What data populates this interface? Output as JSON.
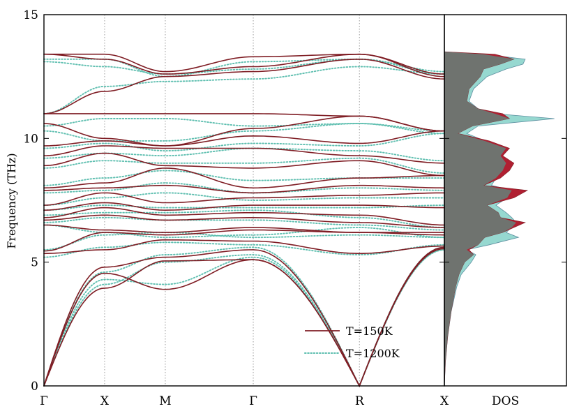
{
  "chart_data": [
    {
      "type": "line",
      "panel": "phonon-dispersion",
      "ylabel": "Frequency (THz)",
      "xlabel": "",
      "ylim": [
        0,
        15
      ],
      "yticks": [
        0,
        5,
        10,
        15
      ],
      "path_points": [
        "Γ",
        "X",
        "M",
        "Γ",
        "R",
        "X"
      ],
      "path_positions": [
        0,
        1,
        2,
        3.45,
        5.2,
        6.6
      ],
      "grid": "vertical dotted lines at high-symmetry points",
      "legend_position": "bottom-right",
      "series": [
        {
          "name": "T=150K",
          "color": "#7f1d24",
          "style": "solid",
          "bands": [
            [
              0,
              4.55,
              3.9,
              5.1,
              0,
              5.55,
              3.85
            ],
            [
              0,
              3.95,
              5.05,
              5.1,
              0,
              5.55,
              4.75
            ],
            [
              0,
              4.8,
              5.2,
              5.5,
              0,
              5.6,
              4.75
            ],
            [
              5.35,
              5.5,
              5.9,
              5.85,
              5.35,
              5.65,
              6.2
            ],
            [
              5.45,
              6.2,
              6.1,
              6.3,
              6.2,
              6.1,
              6.3
            ],
            [
              6.5,
              6.3,
              6.2,
              6.4,
              6.2,
              6.2,
              6.4
            ],
            [
              6.7,
              6.9,
              6.7,
              6.8,
              6.6,
              6.4,
              6.9
            ],
            [
              6.8,
              7.2,
              6.9,
              7.0,
              6.9,
              6.5,
              7.2
            ],
            [
              7.1,
              7.4,
              7.1,
              7.3,
              7.3,
              7.2,
              7.2
            ],
            [
              7.3,
              7.8,
              7.4,
              7.6,
              7.7,
              7.8,
              7.4
            ],
            [
              7.9,
              8.0,
              8.1,
              7.8,
              8.1,
              8.0,
              8.0
            ],
            [
              8.0,
              8.2,
              8.8,
              8.0,
              8.4,
              8.5,
              8.7
            ],
            [
              8.9,
              9.4,
              8.9,
              8.8,
              9.1,
              8.5,
              9.3
            ],
            [
              9.3,
              9.7,
              9.6,
              9.6,
              9.3,
              9.0,
              9.6
            ],
            [
              9.7,
              9.9,
              9.7,
              10.1,
              9.8,
              10.3,
              9.8
            ],
            [
              10.6,
              10.0,
              9.7,
              10.4,
              10.9,
              10.3,
              10.0
            ],
            [
              11.0,
              11.0,
              11.0,
              11.0,
              10.9,
              10.3,
              11.0
            ],
            [
              11.0,
              11.9,
              12.5,
              12.7,
              13.2,
              12.4,
              11.9
            ],
            [
              13.4,
              13.2,
              12.6,
              12.9,
              13.4,
              12.5,
              12.5
            ],
            [
              13.4,
              13.4,
              12.7,
              13.3,
              13.4,
              12.6,
              13.4
            ]
          ]
        },
        {
          "name": "T=1200K",
          "color": "#5fbfb0",
          "style": "dotted",
          "bands": [
            [
              0,
              4.3,
              4.1,
              5.2,
              0,
              5.5,
              4.1
            ],
            [
              0,
              4.1,
              5.0,
              5.3,
              0,
              5.5,
              4.3
            ],
            [
              0,
              4.6,
              5.3,
              5.6,
              0,
              5.6,
              4.6
            ],
            [
              5.2,
              5.6,
              5.8,
              5.7,
              5.3,
              5.7,
              6.0
            ],
            [
              5.5,
              6.1,
              6.2,
              6.0,
              6.1,
              6.0,
              6.2
            ],
            [
              6.5,
              6.2,
              6.0,
              6.1,
              6.4,
              6.0,
              6.3
            ],
            [
              6.6,
              6.8,
              6.7,
              6.7,
              6.5,
              6.3,
              6.8
            ],
            [
              6.9,
              7.0,
              7.0,
              7.1,
              6.8,
              6.4,
              7.1
            ],
            [
              7.1,
              7.3,
              7.2,
              7.2,
              7.2,
              7.3,
              7.2
            ],
            [
              7.3,
              7.6,
              7.8,
              7.5,
              7.6,
              7.6,
              7.3
            ],
            [
              7.8,
              7.9,
              8.2,
              7.8,
              8.0,
              7.9,
              8.0
            ],
            [
              8.1,
              8.4,
              8.7,
              8.3,
              8.4,
              8.4,
              8.6
            ],
            [
              8.8,
              9.1,
              9.0,
              9.0,
              9.2,
              8.6,
              9.0
            ],
            [
              9.2,
              9.4,
              9.3,
              9.6,
              9.5,
              9.1,
              9.5
            ],
            [
              9.6,
              9.8,
              9.5,
              9.8,
              9.7,
              10.2,
              9.7
            ],
            [
              10.3,
              9.9,
              9.9,
              10.3,
              10.6,
              10.2,
              10.1
            ],
            [
              10.5,
              10.8,
              10.8,
              10.5,
              10.6,
              10.3,
              10.7
            ],
            [
              11.0,
              12.1,
              12.3,
              12.4,
              12.9,
              12.6,
              12.2
            ],
            [
              13.1,
              12.9,
              12.6,
              12.8,
              13.2,
              12.6,
              12.8
            ],
            [
              13.2,
              13.2,
              12.5,
              13.1,
              13.2,
              12.7,
              13.2
            ]
          ]
        }
      ]
    },
    {
      "type": "area",
      "panel": "density-of-states",
      "xlabel": "DOS",
      "ylim": [
        0,
        15
      ],
      "note_colors": {
        "low_T_fill": "#b01f31",
        "high_T_fill": "#96d8d0",
        "overlap_fill": "#6f736f"
      },
      "series": [
        {
          "name": "T=150K",
          "color": "#b01f31",
          "freq": [
            0,
            1,
            2,
            3,
            4,
            4.5,
            5,
            5.3,
            5.5,
            5.7,
            6.0,
            6.2,
            6.4,
            6.6,
            6.8,
            7.0,
            7.3,
            7.6,
            7.9,
            8.1,
            8.4,
            8.7,
            9.0,
            9.3,
            9.6,
            9.9,
            10.2,
            10.5,
            10.8,
            11.0,
            11.2,
            11.5,
            12.0,
            12.5,
            12.8,
            13.0,
            13.2,
            13.4,
            13.5
          ],
          "values": [
            0,
            0.01,
            0.03,
            0.06,
            0.1,
            0.13,
            0.18,
            0.26,
            0.22,
            0.3,
            0.36,
            0.52,
            0.62,
            0.72,
            0.5,
            0.48,
            0.38,
            0.62,
            0.74,
            0.35,
            0.5,
            0.58,
            0.62,
            0.52,
            0.58,
            0.4,
            0.12,
            0.25,
            0.58,
            0.52,
            0.3,
            0.2,
            0.22,
            0.32,
            0.35,
            0.5,
            0.62,
            0.45,
            0
          ]
        },
        {
          "name": "T=1200K",
          "color": "#96d8d0",
          "freq": [
            0,
            1,
            2,
            3,
            4,
            4.5,
            5,
            5.3,
            5.5,
            5.7,
            6.0,
            6.2,
            6.4,
            6.6,
            6.8,
            7.0,
            7.3,
            7.6,
            7.9,
            8.1,
            8.4,
            8.7,
            9.0,
            9.3,
            9.6,
            9.9,
            10.2,
            10.5,
            10.8,
            11.0,
            11.2,
            11.5,
            12.0,
            12.5,
            12.8,
            13.0,
            13.2,
            13.4,
            13.5
          ],
          "values": [
            0,
            0.01,
            0.03,
            0.06,
            0.11,
            0.15,
            0.24,
            0.28,
            0.2,
            0.4,
            0.66,
            0.55,
            0.6,
            0.64,
            0.6,
            0.55,
            0.46,
            0.56,
            0.6,
            0.42,
            0.46,
            0.52,
            0.55,
            0.5,
            0.55,
            0.36,
            0.2,
            0.3,
            0.98,
            0.45,
            0.3,
            0.22,
            0.26,
            0.38,
            0.55,
            0.7,
            0.72,
            0.35,
            0
          ]
        }
      ]
    }
  ]
}
